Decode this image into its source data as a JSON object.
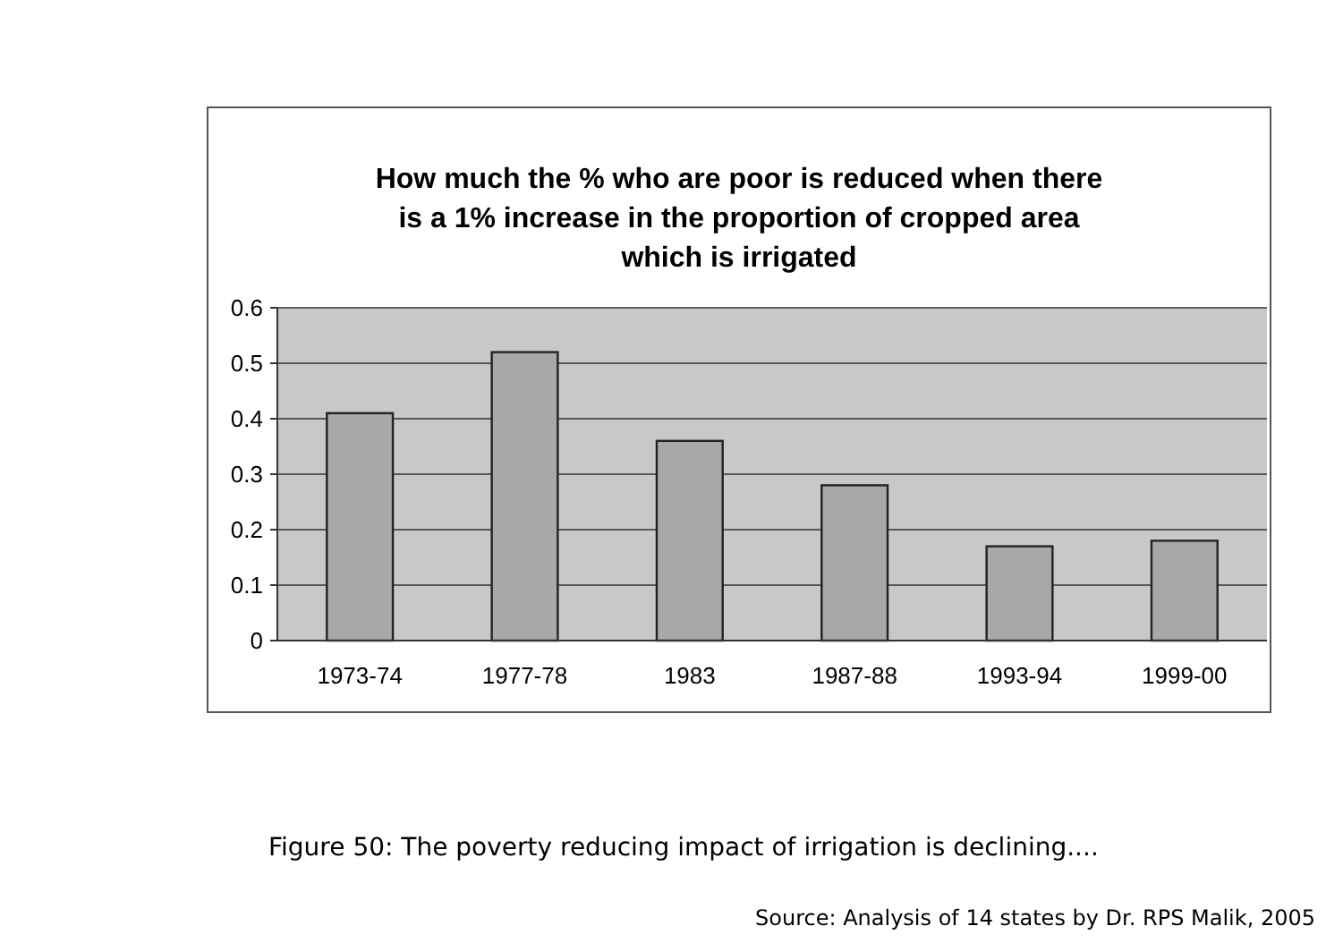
{
  "chart_data": {
    "type": "bar",
    "title": "How much the % who are poor is reduced when there is a 1% increase in the proportion of cropped area which is irrigated",
    "categories": [
      "1973-74",
      "1977-78",
      "1983",
      "1987-88",
      "1993-94",
      "1999-00"
    ],
    "values": [
      0.41,
      0.52,
      0.36,
      0.28,
      0.17,
      0.18
    ],
    "color": "#a8a8a8",
    "ylim": [
      0,
      0.6
    ],
    "yticks": [
      0,
      0.1,
      0.2,
      0.3,
      0.4,
      0.5,
      0.6
    ],
    "grid": "y",
    "annotations": [
      "Figure 50:  The poverty reducing impact of irrigation is declining....",
      "Source: Analysis of 14 states by Dr. RPS Malik, 2005"
    ]
  }
}
